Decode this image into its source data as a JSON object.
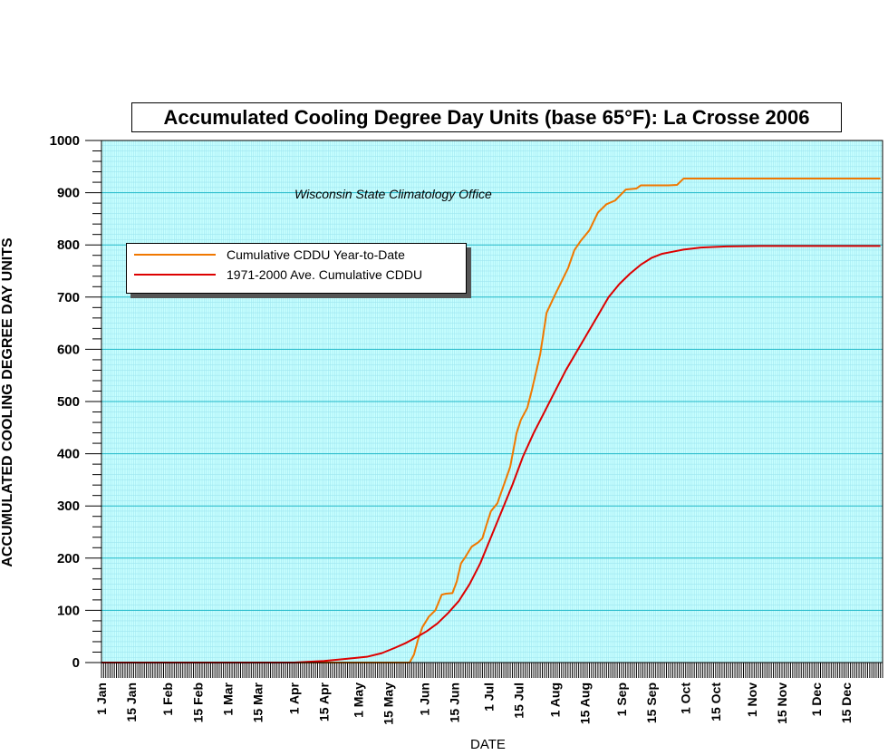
{
  "chart_data": {
    "type": "line",
    "title": "Accumulated Cooling Degree Day Units (base 65°F): La Crosse 2006",
    "annotation": "Wisconsin State Climatology Office",
    "xlabel": "DATE",
    "ylabel": "ACCUMULATED COOLING DEGREE DAY UNITS",
    "ylim": [
      0,
      1000
    ],
    "yticks": [
      0,
      100,
      200,
      300,
      400,
      500,
      600,
      700,
      800,
      900,
      1000
    ],
    "xlim": [
      "2006-01-01",
      "2006-12-31"
    ],
    "xtick_labels": [
      {
        "date": "2006-01-01",
        "label": "1 Jan"
      },
      {
        "date": "2006-01-15",
        "label": "15 Jan"
      },
      {
        "date": "2006-02-01",
        "label": "1 Feb"
      },
      {
        "date": "2006-02-15",
        "label": "15 Feb"
      },
      {
        "date": "2006-03-01",
        "label": "1 Mar"
      },
      {
        "date": "2006-03-15",
        "label": "15 Mar"
      },
      {
        "date": "2006-04-01",
        "label": "1 Apr"
      },
      {
        "date": "2006-04-15",
        "label": "15 Apr"
      },
      {
        "date": "2006-05-01",
        "label": "1 May"
      },
      {
        "date": "2006-05-15",
        "label": "15 May"
      },
      {
        "date": "2006-06-01",
        "label": "1 Jun"
      },
      {
        "date": "2006-06-15",
        "label": "15 Jun"
      },
      {
        "date": "2006-07-01",
        "label": "1 Jul"
      },
      {
        "date": "2006-07-15",
        "label": "15 Jul"
      },
      {
        "date": "2006-08-01",
        "label": "1 Aug"
      },
      {
        "date": "2006-08-15",
        "label": "15 Aug"
      },
      {
        "date": "2006-09-01",
        "label": "1 Sep"
      },
      {
        "date": "2006-09-15",
        "label": "15 Sep"
      },
      {
        "date": "2006-10-01",
        "label": "1 Oct"
      },
      {
        "date": "2006-10-15",
        "label": "15 Oct"
      },
      {
        "date": "2006-11-01",
        "label": "1 Nov"
      },
      {
        "date": "2006-11-15",
        "label": "15 Nov"
      },
      {
        "date": "2006-12-01",
        "label": "1 Dec"
      },
      {
        "date": "2006-12-15",
        "label": "15 Dec"
      }
    ],
    "grid": true,
    "legend_position": "upper-left",
    "series": [
      {
        "name": "Cumulative CDDU Year-to-Date",
        "color": "#f07800",
        "points": [
          [
            "2006-01-01",
            0
          ],
          [
            "2006-05-20",
            0
          ],
          [
            "2006-05-25",
            0
          ],
          [
            "2006-05-27",
            15
          ],
          [
            "2006-05-29",
            45
          ],
          [
            "2006-05-31",
            68
          ],
          [
            "2006-06-03",
            88
          ],
          [
            "2006-06-06",
            100
          ],
          [
            "2006-06-09",
            130
          ],
          [
            "2006-06-11",
            132
          ],
          [
            "2006-06-14",
            133
          ],
          [
            "2006-06-16",
            155
          ],
          [
            "2006-06-18",
            190
          ],
          [
            "2006-06-20",
            202
          ],
          [
            "2006-06-23",
            222
          ],
          [
            "2006-06-26",
            230
          ],
          [
            "2006-06-28",
            238
          ],
          [
            "2006-06-30",
            265
          ],
          [
            "2006-07-02",
            290
          ],
          [
            "2006-07-05",
            305
          ],
          [
            "2006-07-08",
            340
          ],
          [
            "2006-07-11",
            375
          ],
          [
            "2006-07-14",
            440
          ],
          [
            "2006-07-16",
            465
          ],
          [
            "2006-07-19",
            488
          ],
          [
            "2006-07-21",
            520
          ],
          [
            "2006-07-25",
            590
          ],
          [
            "2006-07-28",
            670
          ],
          [
            "2006-08-01",
            705
          ],
          [
            "2006-08-04",
            730
          ],
          [
            "2006-08-07",
            755
          ],
          [
            "2006-08-10",
            790
          ],
          [
            "2006-08-13",
            808
          ],
          [
            "2006-08-17",
            828
          ],
          [
            "2006-08-21",
            862
          ],
          [
            "2006-08-25",
            878
          ],
          [
            "2006-08-29",
            885
          ],
          [
            "2006-09-03",
            906
          ],
          [
            "2006-09-08",
            908
          ],
          [
            "2006-09-10",
            914
          ],
          [
            "2006-09-23",
            914
          ],
          [
            "2006-09-27",
            915
          ],
          [
            "2006-09-30",
            927
          ],
          [
            "2006-12-31",
            927
          ]
        ]
      },
      {
        "name": "1971-2000 Ave. Cumulative CDDU",
        "color": "#dd0000",
        "points": [
          [
            "2006-01-01",
            0
          ],
          [
            "2006-04-01",
            0
          ],
          [
            "2006-04-15",
            3
          ],
          [
            "2006-04-25",
            7
          ],
          [
            "2006-05-05",
            11
          ],
          [
            "2006-05-12",
            18
          ],
          [
            "2006-05-18",
            28
          ],
          [
            "2006-05-23",
            37
          ],
          [
            "2006-05-28",
            48
          ],
          [
            "2006-06-02",
            60
          ],
          [
            "2006-06-07",
            75
          ],
          [
            "2006-06-12",
            95
          ],
          [
            "2006-06-17",
            118
          ],
          [
            "2006-06-22",
            150
          ],
          [
            "2006-06-27",
            190
          ],
          [
            "2006-07-02",
            240
          ],
          [
            "2006-07-07",
            290
          ],
          [
            "2006-07-12",
            340
          ],
          [
            "2006-07-17",
            395
          ],
          [
            "2006-07-22",
            440
          ],
          [
            "2006-07-27",
            480
          ],
          [
            "2006-08-01",
            520
          ],
          [
            "2006-08-06",
            560
          ],
          [
            "2006-08-11",
            595
          ],
          [
            "2006-08-16",
            630
          ],
          [
            "2006-08-21",
            665
          ],
          [
            "2006-08-26",
            700
          ],
          [
            "2006-08-31",
            725
          ],
          [
            "2006-09-05",
            745
          ],
          [
            "2006-09-10",
            762
          ],
          [
            "2006-09-15",
            775
          ],
          [
            "2006-09-20",
            783
          ],
          [
            "2006-09-25",
            787
          ],
          [
            "2006-09-30",
            791
          ],
          [
            "2006-10-08",
            795
          ],
          [
            "2006-10-20",
            797
          ],
          [
            "2006-11-05",
            798
          ],
          [
            "2006-12-31",
            798
          ]
        ]
      }
    ]
  }
}
